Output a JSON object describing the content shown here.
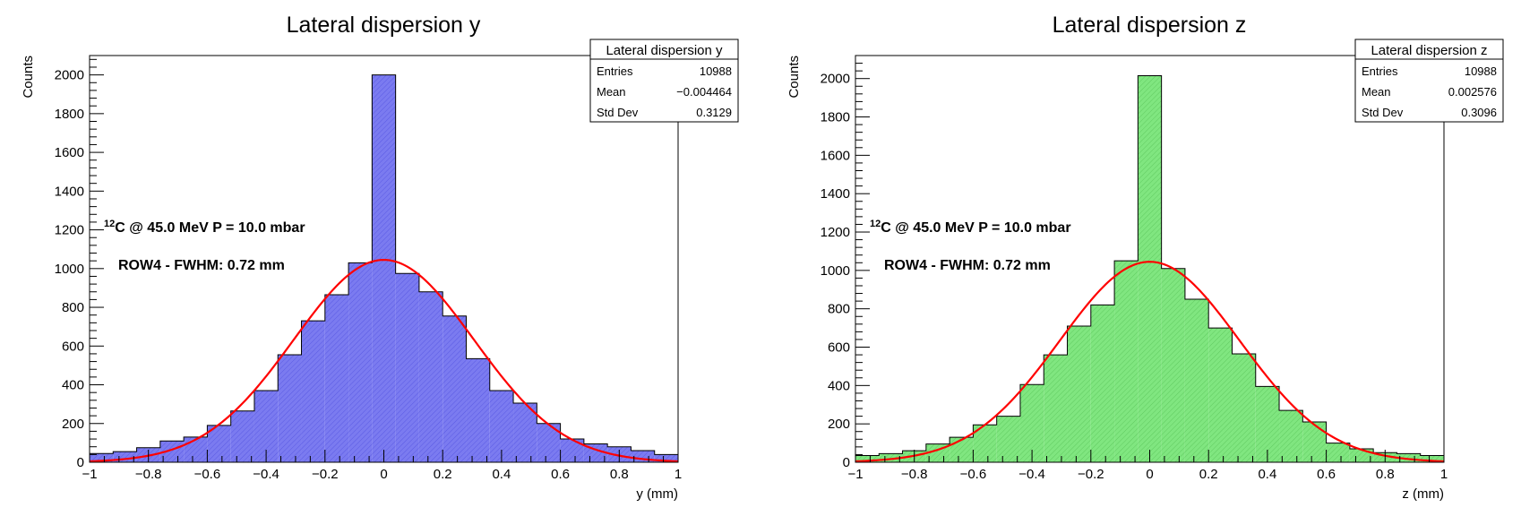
{
  "chart_data": [
    {
      "type": "bar",
      "title": "Lateral dispersion y",
      "xlabel": "y (mm)",
      "ylabel": "Counts",
      "xlim": [
        -1,
        1
      ],
      "ylim": [
        0,
        2100
      ],
      "xticks": [
        -1,
        -0.8,
        -0.6,
        -0.4,
        -0.2,
        0,
        0.2,
        0.4,
        0.6,
        0.8,
        1
      ],
      "yticks": [
        0,
        200,
        400,
        600,
        800,
        1000,
        1200,
        1400,
        1600,
        1800,
        2000
      ],
      "tick_labels_x": [
        "−1",
        "−0.8",
        "−0.6",
        "−0.4",
        "−0.2",
        "0",
        "0.2",
        "0.4",
        "0.6",
        "0.8",
        "1"
      ],
      "tick_labels_y": [
        "0",
        "200",
        "400",
        "600",
        "800",
        "1000",
        "1200",
        "1400",
        "1600",
        "1800",
        "2000"
      ],
      "bin_edges": [
        -1,
        -0.92,
        -0.84,
        -0.76,
        -0.68,
        -0.6,
        -0.52,
        -0.44,
        -0.36,
        -0.28,
        -0.2,
        -0.12,
        -0.04,
        0.04,
        0.12,
        0.2,
        0.28,
        0.36,
        0.44,
        0.52,
        0.6,
        0.68,
        0.76,
        0.84,
        0.92,
        1
      ],
      "values": [
        45,
        55,
        75,
        110,
        130,
        190,
        265,
        370,
        555,
        730,
        865,
        1030,
        2000,
        975,
        880,
        755,
        535,
        370,
        305,
        200,
        120,
        95,
        80,
        60,
        40
      ],
      "fill_color": "#7b7bf0",
      "edge_color": "#0000cc",
      "fit": {
        "mean": 0,
        "sigma": 0.3057,
        "amplitude": 1045,
        "color": "#ff0000"
      },
      "stats_box": {
        "title": "Lateral dispersion y",
        "rows": [
          {
            "label": "Entries",
            "value": "10988"
          },
          {
            "label": "Mean",
            "value": "−0.004464"
          },
          {
            "label": "Std Dev",
            "value": "0.3129"
          }
        ]
      },
      "annotation_sup": "12",
      "annotation_line1": "C @ 45.0 MeV P = 10.0 mbar",
      "annotation_line2": "ROW4 - FWHM: 0.72 mm"
    },
    {
      "type": "bar",
      "title": "Lateral dispersion z",
      "xlabel": "z (mm)",
      "ylabel": "Counts",
      "xlim": [
        -1,
        1
      ],
      "ylim": [
        0,
        2120
      ],
      "xticks": [
        -1,
        -0.8,
        -0.6,
        -0.4,
        -0.2,
        0,
        0.2,
        0.4,
        0.6,
        0.8,
        1
      ],
      "yticks": [
        0,
        200,
        400,
        600,
        800,
        1000,
        1200,
        1400,
        1600,
        1800,
        2000
      ],
      "tick_labels_x": [
        "−1",
        "−0.8",
        "−0.6",
        "−0.4",
        "−0.2",
        "0",
        "0.2",
        "0.4",
        "0.6",
        "0.8",
        "1"
      ],
      "tick_labels_y": [
        "0",
        "200",
        "400",
        "600",
        "800",
        "1000",
        "1200",
        "1400",
        "1600",
        "1800",
        "2000"
      ],
      "bin_edges": [
        -1,
        -0.92,
        -0.84,
        -0.76,
        -0.68,
        -0.6,
        -0.52,
        -0.44,
        -0.36,
        -0.28,
        -0.2,
        -0.12,
        -0.04,
        0.04,
        0.12,
        0.2,
        0.28,
        0.36,
        0.44,
        0.52,
        0.6,
        0.68,
        0.76,
        0.84,
        0.92,
        1
      ],
      "values": [
        35,
        45,
        60,
        95,
        130,
        195,
        240,
        405,
        560,
        710,
        820,
        1050,
        2015,
        1010,
        850,
        700,
        565,
        395,
        270,
        210,
        100,
        70,
        50,
        45,
        35
      ],
      "fill_color": "#80e680",
      "edge_color": "#006600",
      "fit": {
        "mean": 0,
        "sigma": 0.3057,
        "amplitude": 1045,
        "color": "#ff0000"
      },
      "stats_box": {
        "title": "Lateral dispersion z",
        "rows": [
          {
            "label": "Entries",
            "value": "10988"
          },
          {
            "label": "Mean",
            "value": "0.002576"
          },
          {
            "label": "Std Dev",
            "value": "0.3096"
          }
        ]
      },
      "annotation_sup": "12",
      "annotation_line1": "C @ 45.0 MeV P = 10.0 mbar",
      "annotation_line2": "ROW4 - FWHM: 0.72 mm"
    }
  ]
}
